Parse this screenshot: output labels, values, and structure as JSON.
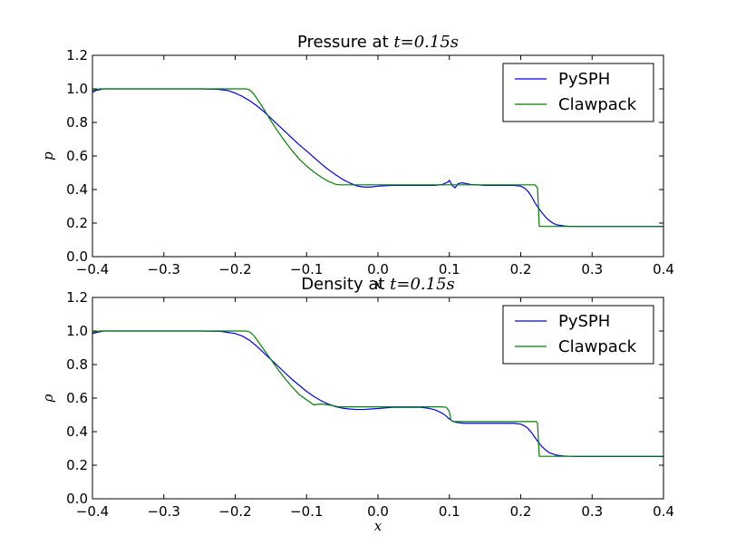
{
  "chart_data": [
    {
      "type": "line",
      "title": "Pressure at ",
      "title_math": "t=0.15s",
      "xlabel": "x",
      "ylabel": "p",
      "xlim": [
        -0.4,
        0.4
      ],
      "ylim": [
        0.0,
        1.2
      ],
      "xticks": [
        -0.4,
        -0.3,
        -0.2,
        -0.1,
        0.0,
        0.1,
        0.2,
        0.3,
        0.4
      ],
      "yticks": [
        0.0,
        0.2,
        0.4,
        0.6,
        0.8,
        1.0,
        1.2
      ],
      "xtick_labels": [
        "−0.4",
        "−0.3",
        "−0.2",
        "−0.1",
        "0.0",
        "0.1",
        "0.2",
        "0.3",
        "0.4"
      ],
      "ytick_labels": [
        "0.0",
        "0.2",
        "0.4",
        "0.6",
        "0.8",
        "1.0",
        "1.2"
      ],
      "legend": {
        "position": "top-right",
        "entries": [
          "PySPH",
          "Clawpack"
        ]
      },
      "series": [
        {
          "name": "PySPH",
          "color": "#0000ff",
          "x": [
            -0.4,
            -0.395,
            -0.385,
            -0.35,
            -0.3,
            -0.25,
            -0.225,
            -0.21,
            -0.2,
            -0.19,
            -0.18,
            -0.17,
            -0.16,
            -0.15,
            -0.14,
            -0.13,
            -0.12,
            -0.11,
            -0.1,
            -0.09,
            -0.08,
            -0.07,
            -0.06,
            -0.05,
            -0.04,
            -0.03,
            -0.02,
            -0.01,
            0.0,
            0.02,
            0.04,
            0.06,
            0.08,
            0.09,
            0.098,
            0.1,
            0.104,
            0.108,
            0.112,
            0.118,
            0.13,
            0.15,
            0.17,
            0.19,
            0.2,
            0.205,
            0.21,
            0.215,
            0.22,
            0.225,
            0.23,
            0.235,
            0.24,
            0.245,
            0.25,
            0.26,
            0.27,
            0.28,
            0.3,
            0.35,
            0.4
          ],
          "y": [
            0.98,
            0.99,
            1.0,
            1.0,
            1.0,
            1.0,
            0.998,
            0.99,
            0.975,
            0.955,
            0.93,
            0.9,
            0.865,
            0.825,
            0.785,
            0.745,
            0.705,
            0.665,
            0.63,
            0.592,
            0.555,
            0.52,
            0.49,
            0.462,
            0.44,
            0.422,
            0.415,
            0.415,
            0.42,
            0.425,
            0.425,
            0.425,
            0.425,
            0.43,
            0.445,
            0.455,
            0.425,
            0.41,
            0.435,
            0.44,
            0.43,
            0.425,
            0.425,
            0.425,
            0.42,
            0.41,
            0.39,
            0.36,
            0.32,
            0.29,
            0.26,
            0.235,
            0.215,
            0.2,
            0.19,
            0.183,
            0.18,
            0.18,
            0.18,
            0.18,
            0.18
          ]
        },
        {
          "name": "Clawpack",
          "color": "#008000",
          "x": [
            -0.4,
            -0.39,
            -0.35,
            -0.3,
            -0.25,
            -0.2,
            -0.19,
            -0.185,
            -0.18,
            -0.175,
            -0.17,
            -0.16,
            -0.15,
            -0.14,
            -0.13,
            -0.12,
            -0.11,
            -0.1,
            -0.09,
            -0.08,
            -0.07,
            -0.06,
            -0.055,
            -0.05,
            -0.045,
            -0.04,
            0.0,
            0.05,
            0.1,
            0.15,
            0.2,
            0.22,
            0.2235,
            0.226,
            0.23,
            0.3,
            0.35,
            0.4
          ],
          "y": [
            0.99,
            1.0,
            1.0,
            1.0,
            1.0,
            1.0,
            1.0,
            1.0,
            0.995,
            0.975,
            0.945,
            0.88,
            0.81,
            0.745,
            0.685,
            0.63,
            0.58,
            0.54,
            0.505,
            0.475,
            0.45,
            0.432,
            0.428,
            0.428,
            0.428,
            0.428,
            0.428,
            0.428,
            0.428,
            0.428,
            0.428,
            0.428,
            0.41,
            0.18,
            0.18,
            0.18,
            0.18,
            0.18
          ]
        }
      ]
    },
    {
      "type": "line",
      "title": "Density at ",
      "title_math": "t=0.15s",
      "xlabel": "x",
      "ylabel": "ρ",
      "xlim": [
        -0.4,
        0.4
      ],
      "ylim": [
        0.0,
        1.2
      ],
      "xticks": [
        -0.4,
        -0.3,
        -0.2,
        -0.1,
        0.0,
        0.1,
        0.2,
        0.3,
        0.4
      ],
      "yticks": [
        0.0,
        0.2,
        0.4,
        0.6,
        0.8,
        1.0,
        1.2
      ],
      "xtick_labels": [
        "−0.4",
        "−0.3",
        "−0.2",
        "−0.1",
        "0.0",
        "0.1",
        "0.2",
        "0.3",
        "0.4"
      ],
      "ytick_labels": [
        "0.0",
        "0.2",
        "0.4",
        "0.6",
        "0.8",
        "1.0",
        "1.2"
      ],
      "legend": {
        "position": "top-right",
        "entries": [
          "PySPH",
          "Clawpack"
        ]
      },
      "series": [
        {
          "name": "PySPH",
          "color": "#0000ff",
          "x": [
            -0.4,
            -0.395,
            -0.385,
            -0.35,
            -0.3,
            -0.25,
            -0.22,
            -0.2,
            -0.19,
            -0.18,
            -0.17,
            -0.16,
            -0.15,
            -0.14,
            -0.13,
            -0.12,
            -0.11,
            -0.1,
            -0.09,
            -0.08,
            -0.07,
            -0.06,
            -0.05,
            -0.04,
            -0.03,
            -0.02,
            -0.01,
            0.0,
            0.02,
            0.04,
            0.06,
            0.07,
            0.08,
            0.09,
            0.095,
            0.1,
            0.105,
            0.11,
            0.12,
            0.15,
            0.18,
            0.19,
            0.2,
            0.205,
            0.21,
            0.215,
            0.22,
            0.225,
            0.23,
            0.235,
            0.24,
            0.25,
            0.26,
            0.27,
            0.28,
            0.3,
            0.35,
            0.4
          ],
          "y": [
            0.985,
            0.99,
            1.0,
            1.0,
            1.0,
            1.0,
            0.998,
            0.985,
            0.97,
            0.945,
            0.91,
            0.87,
            0.83,
            0.79,
            0.75,
            0.71,
            0.675,
            0.64,
            0.61,
            0.585,
            0.565,
            0.55,
            0.54,
            0.535,
            0.532,
            0.532,
            0.535,
            0.538,
            0.545,
            0.545,
            0.545,
            0.54,
            0.53,
            0.51,
            0.495,
            0.475,
            0.462,
            0.455,
            0.45,
            0.45,
            0.45,
            0.45,
            0.445,
            0.435,
            0.42,
            0.395,
            0.365,
            0.335,
            0.31,
            0.29,
            0.275,
            0.26,
            0.255,
            0.253,
            0.252,
            0.252,
            0.252,
            0.252
          ]
        },
        {
          "name": "Clawpack",
          "color": "#008000",
          "x": [
            -0.4,
            -0.39,
            -0.35,
            -0.3,
            -0.25,
            -0.2,
            -0.185,
            -0.18,
            -0.175,
            -0.17,
            -0.16,
            -0.15,
            -0.14,
            -0.13,
            -0.12,
            -0.11,
            -0.1,
            -0.09,
            -0.08,
            -0.07,
            -0.06,
            -0.055,
            -0.05,
            -0.045,
            -0.04,
            0.0,
            0.05,
            0.09,
            0.096,
            0.1,
            0.102,
            0.105,
            0.15,
            0.2,
            0.222,
            0.2235,
            0.226,
            0.23,
            0.3,
            0.35,
            0.4
          ],
          "y": [
            0.99,
            1.0,
            1.0,
            1.0,
            1.0,
            1.0,
            1.0,
            0.995,
            0.978,
            0.95,
            0.89,
            0.83,
            0.77,
            0.715,
            0.665,
            0.62,
            0.59,
            0.56,
            0.565,
            0.56,
            0.552,
            0.548,
            0.548,
            0.548,
            0.548,
            0.548,
            0.548,
            0.548,
            0.545,
            0.52,
            0.47,
            0.46,
            0.46,
            0.46,
            0.46,
            0.45,
            0.253,
            0.253,
            0.253,
            0.253,
            0.253
          ]
        }
      ]
    }
  ]
}
